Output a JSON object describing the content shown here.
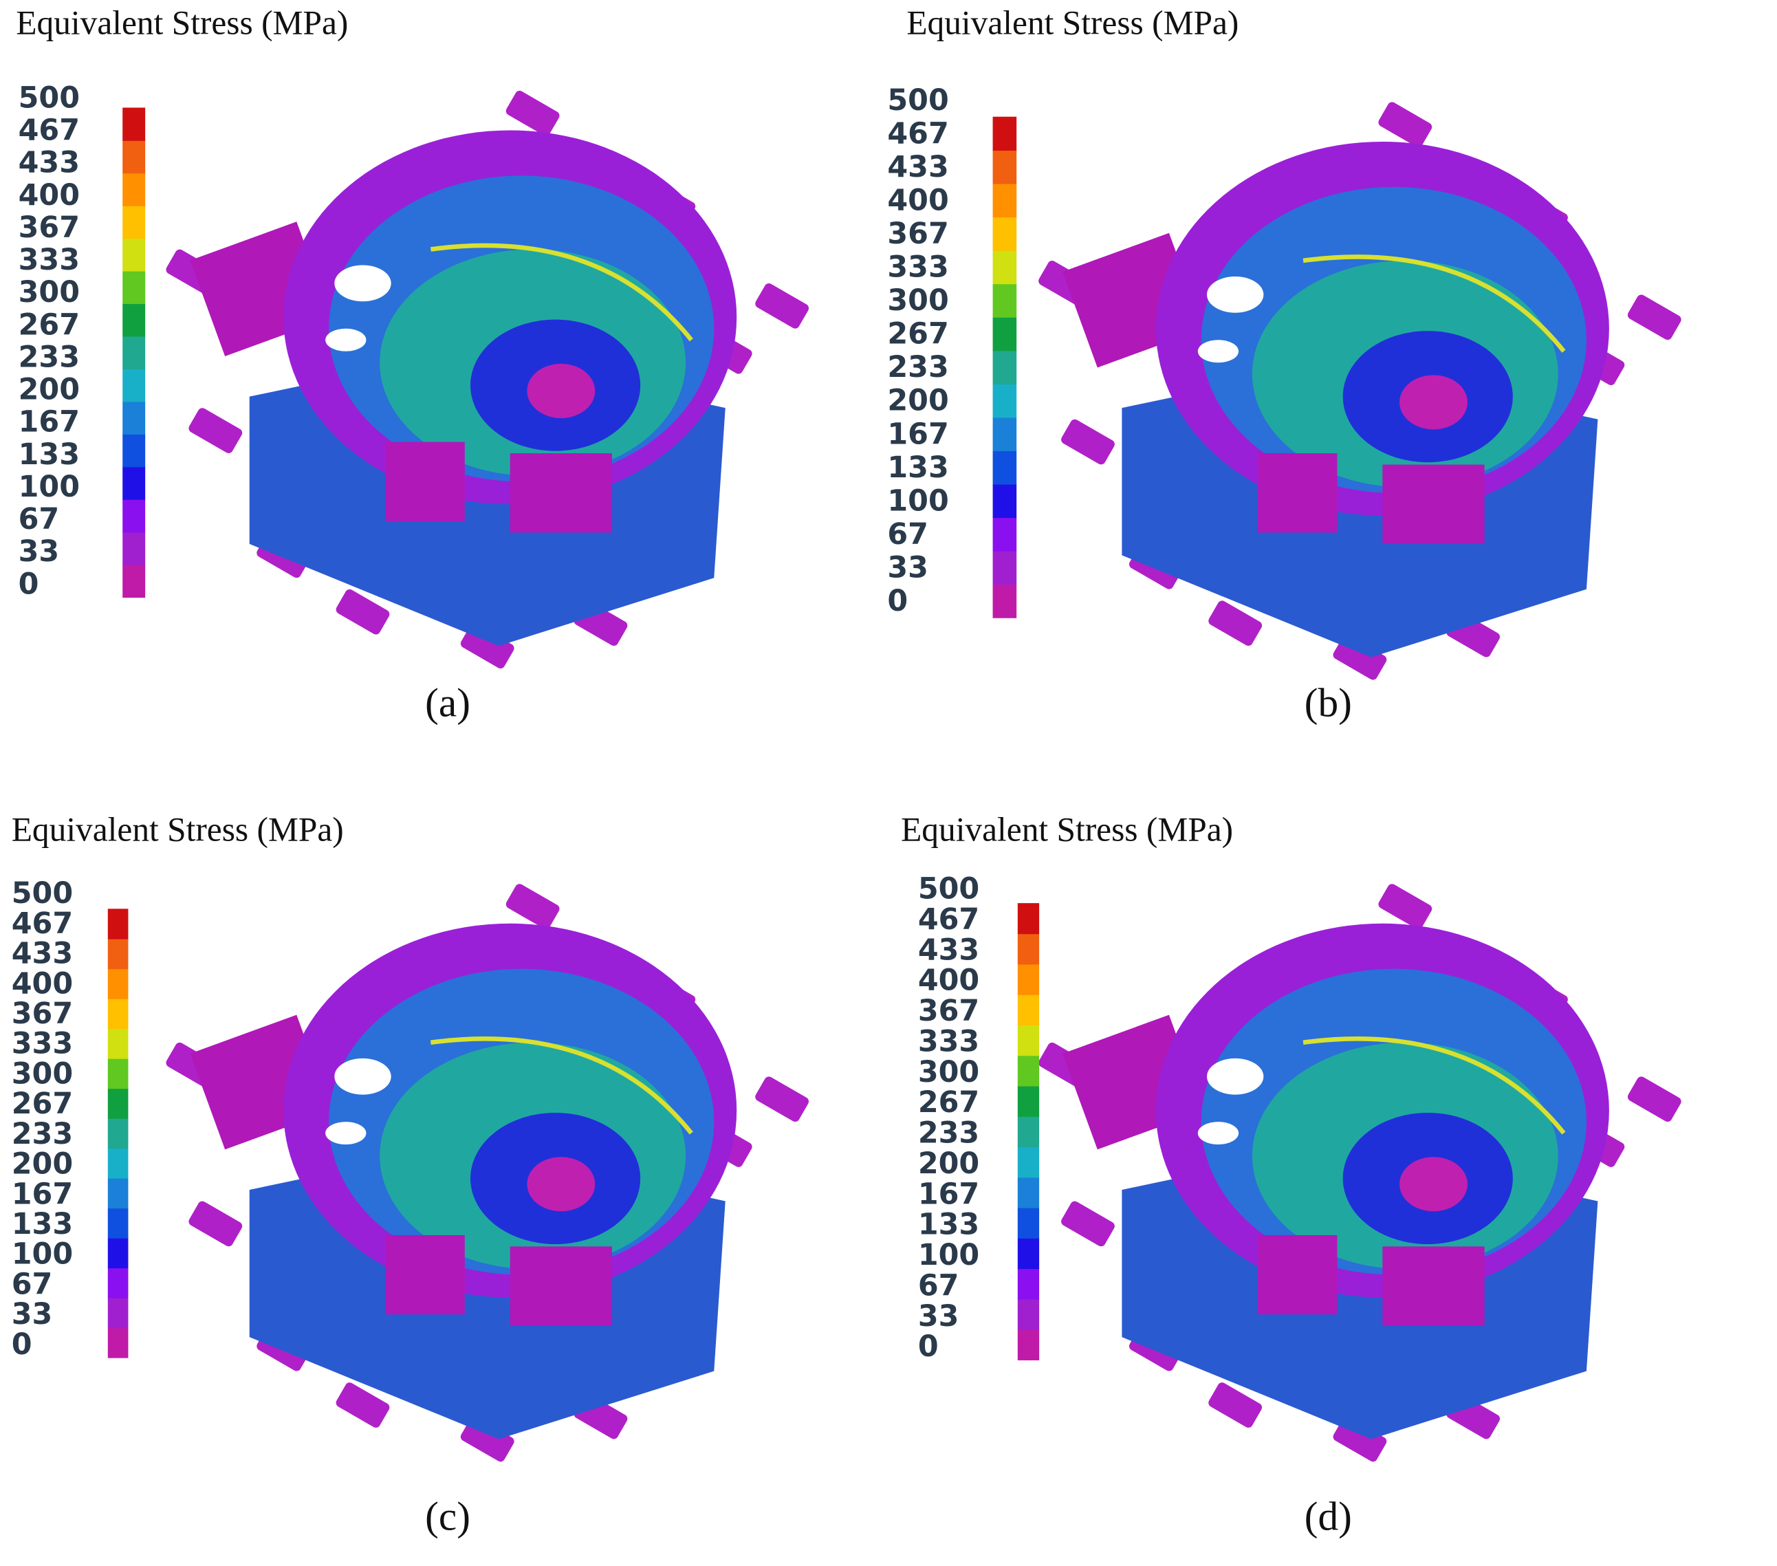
{
  "colorbar_colors": [
    "#c01aa8",
    "#a020d0",
    "#8a10f0",
    "#2010e8",
    "#1050e0",
    "#1a80d8",
    "#18b0c8",
    "#20a890",
    "#10a040",
    "#60c820",
    "#d0e010",
    "#ffc000",
    "#ff9000",
    "#f06010",
    "#d01010"
  ],
  "panels": [
    {
      "title": "Equivalent Stress (MPa)",
      "ticks": [
        500,
        467,
        433,
        400,
        367,
        333,
        300,
        267,
        233,
        200,
        167,
        133,
        100,
        67,
        33,
        0
      ],
      "caption": "(a)"
    },
    {
      "title": "Equivalent Stress (MPa)",
      "ticks": [
        500,
        467,
        433,
        400,
        367,
        333,
        300,
        267,
        233,
        200,
        167,
        133,
        100,
        67,
        33,
        0
      ],
      "caption": "(b)"
    },
    {
      "title": "Equivalent Stress (MPa)",
      "ticks": [
        500,
        467,
        433,
        400,
        367,
        333,
        300,
        267,
        233,
        200,
        167,
        133,
        100,
        67,
        33,
        0
      ],
      "caption": "(c)"
    },
    {
      "title": "Equivalent Stress (MPa)",
      "ticks": [
        500,
        467,
        433,
        400,
        367,
        333,
        300,
        267,
        233,
        200,
        167,
        133,
        100,
        67,
        33,
        0
      ],
      "caption": "(d)"
    }
  ]
}
